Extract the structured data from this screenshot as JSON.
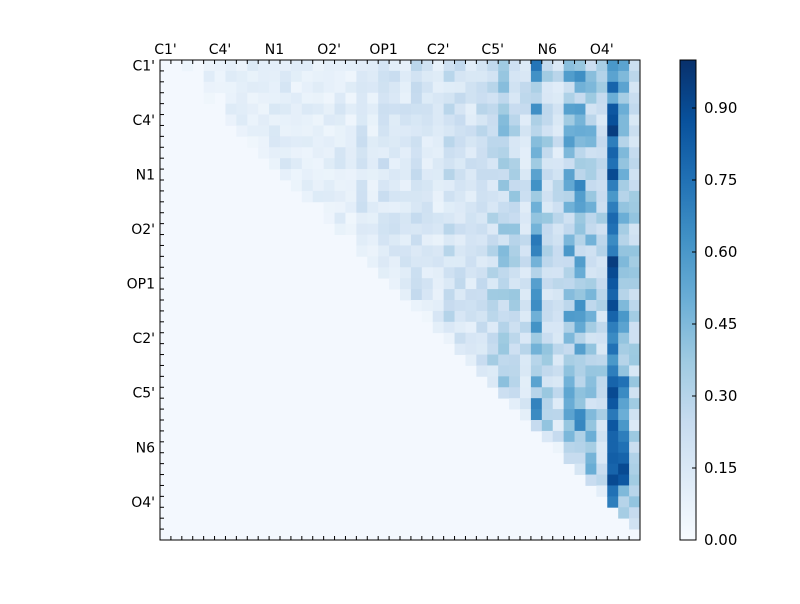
{
  "chart_data": {
    "type": "heatmap",
    "title": "",
    "xlabel": "",
    "ylabel": "",
    "n": 44,
    "x_tick_labels": [
      "C1'",
      "C4'",
      "N1",
      "O2'",
      "OP1",
      "C2'",
      "C5'",
      "N6",
      "O4'"
    ],
    "y_tick_labels": [
      "C1'",
      "C4'",
      "N1",
      "O2'",
      "OP1",
      "C2'",
      "C5'",
      "N6",
      "O4'"
    ],
    "tick_index_step": 5,
    "color_range": [
      0.0,
      1.0
    ],
    "colorbar_ticks": [
      "0.00",
      "0.15",
      "0.30",
      "0.45",
      "0.60",
      "0.75",
      "0.90"
    ],
    "colorbar_tick_values": [
      0.0,
      0.15,
      0.3,
      0.45,
      0.6,
      0.75,
      0.9
    ],
    "colormap": [
      "#f7fbff",
      "#deebf7",
      "#c6dbef",
      "#9ecae1",
      "#6baed6",
      "#4292c6",
      "#2171b5",
      "#08519c",
      "#08306b"
    ],
    "column_strength": [
      0.02,
      0.03,
      0.05,
      0.07,
      0.09,
      0.08,
      0.1,
      0.12,
      0.11,
      0.1,
      0.12,
      0.13,
      0.1,
      0.11,
      0.12,
      0.1,
      0.13,
      0.09,
      0.18,
      0.12,
      0.2,
      0.18,
      0.17,
      0.22,
      0.15,
      0.14,
      0.24,
      0.2,
      0.18,
      0.22,
      0.28,
      0.35,
      0.3,
      0.22,
      0.55,
      0.3,
      0.22,
      0.45,
      0.52,
      0.38,
      0.3,
      0.25,
      0.28,
      0.3
    ],
    "strong_columns": {
      "41": [
        0.6,
        0.55,
        0.8,
        0.5,
        0.85,
        0.88,
        0.95,
        0.7,
        0.8,
        0.75,
        0.9,
        0.7,
        0.6,
        0.7,
        0.78,
        0.75,
        0.65,
        0.7,
        0.95,
        0.9,
        0.85,
        0.8,
        0.9,
        0.8,
        0.7,
        0.65,
        0.75,
        0.6,
        0.7,
        0.8,
        0.9,
        0.85,
        0.72,
        0.85,
        0.8,
        0.8,
        0.82,
        0.8,
        0.9,
        0.75,
        0.7,
        0.65,
        0.0
      ],
      "42": [
        0.55,
        0.45,
        0.55,
        0.35,
        0.5,
        0.45,
        0.45,
        0.3,
        0.45,
        0.4,
        0.5,
        0.35,
        0.3,
        0.4,
        0.5,
        0.35,
        0.3,
        0.4,
        0.45,
        0.4,
        0.35,
        0.3,
        0.45,
        0.6,
        0.55,
        0.4,
        0.35,
        0.3,
        0.4,
        0.75,
        0.65,
        0.55,
        0.5,
        0.6,
        0.7,
        0.75,
        0.8,
        0.9,
        0.85,
        0.45,
        0.3,
        0.35,
        0.3
      ]
    }
  }
}
